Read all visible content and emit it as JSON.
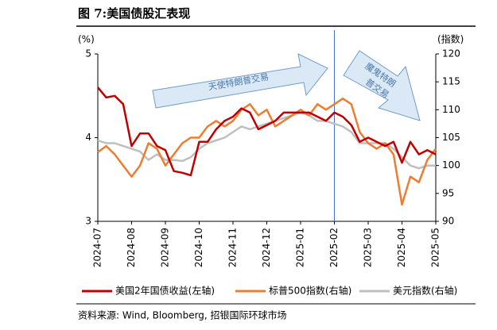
{
  "chart_data": {
    "type": "line",
    "title": "图 7:美国债股汇表现",
    "y_label": "(%)",
    "y2_label": "(指数)",
    "source": "资料来源: Wind, Bloomberg, 招银国际环球市场",
    "annotations": {
      "angel": "天使特朗普交易",
      "devil_lines": [
        "魔鬼特朗",
        "普交易"
      ]
    },
    "vline": "2025-02",
    "categories": [
      "2024-07",
      null,
      null,
      null,
      "2024-08",
      null,
      null,
      null,
      "2024-09",
      null,
      null,
      null,
      "2024-10",
      null,
      null,
      null,
      "2024-11",
      null,
      null,
      null,
      "2024-12",
      null,
      null,
      null,
      "2025-01",
      null,
      null,
      null,
      "2025-02",
      null,
      null,
      null,
      "2025-03",
      null,
      null,
      null,
      "2025-04",
      null,
      null,
      null,
      "2025-05"
    ],
    "ylim": [
      3,
      5
    ],
    "yticks": [
      3,
      4,
      5
    ],
    "y2lim": [
      90,
      120
    ],
    "y2ticks": [
      90,
      95,
      100,
      105,
      110,
      115,
      120
    ],
    "series": [
      {
        "name": "美国2年国债收益(左轴)",
        "color": "#c00000",
        "values": [
          4.6,
          4.48,
          4.5,
          4.4,
          3.9,
          4.05,
          4.05,
          3.9,
          3.85,
          3.6,
          3.58,
          3.55,
          3.95,
          3.95,
          4.1,
          4.2,
          4.25,
          4.35,
          4.3,
          4.1,
          4.15,
          4.2,
          4.3,
          4.3,
          4.3,
          4.3,
          4.25,
          4.2,
          4.3,
          4.25,
          4.15,
          3.95,
          4.0,
          3.95,
          3.9,
          3.95,
          3.7,
          3.95,
          3.8,
          3.85,
          3.8
        ]
      },
      {
        "name": "标普500指数(右轴)",
        "color": "#ed7d31",
        "axis": "y2",
        "values": [
          102.4,
          103.5,
          102,
          100,
          98,
          100,
          104,
          103,
          100,
          102,
          104,
          105,
          105,
          107,
          108,
          107,
          108,
          110,
          111,
          109,
          110,
          107,
          108,
          109,
          110,
          109,
          111,
          110,
          111,
          112,
          111,
          106,
          104,
          103,
          104,
          102,
          93,
          98,
          97,
          101,
          103
        ]
      },
      {
        "name": "美元指数(右轴)",
        "color": "#bfbfbf",
        "axis": "y2",
        "values": [
          104.5,
          104,
          104,
          103.5,
          103,
          102.5,
          101,
          102,
          101,
          101,
          100.8,
          101.5,
          103,
          104,
          104.5,
          105,
          106,
          107,
          106.5,
          107,
          107.5,
          108,
          108.5,
          109,
          109.5,
          109,
          108,
          108,
          107.5,
          107,
          106,
          104,
          104,
          104,
          104,
          103,
          101.5,
          100,
          99.5,
          100,
          100
        ]
      }
    ]
  }
}
